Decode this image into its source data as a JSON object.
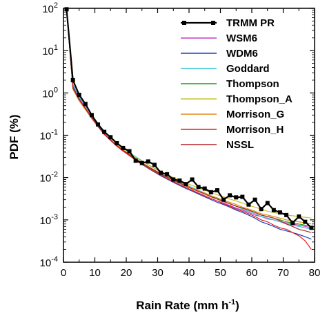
{
  "chart_data": {
    "type": "line",
    "title": "",
    "xlabel": "Rain Rate (mm h",
    "xlabel_sup": "-1",
    "xlabel_close": ")",
    "ylabel": "PDF (%)",
    "xlim": [
      0,
      80
    ],
    "ylim": [
      0.0001,
      100
    ],
    "yscale": "log",
    "grid": false,
    "legend_position": "top-right",
    "x_ticks": [
      "0",
      "10",
      "20",
      "30",
      "40",
      "50",
      "60",
      "70",
      "80"
    ],
    "y_ticks": [
      {
        "base": "10",
        "exp": "2"
      },
      {
        "base": "10",
        "exp": "1"
      },
      {
        "base": "10",
        "exp": "0"
      },
      {
        "base": "10",
        "exp": "-1"
      },
      {
        "base": "10",
        "exp": "-2"
      },
      {
        "base": "10",
        "exp": "-3"
      },
      {
        "base": "10",
        "exp": "-4"
      }
    ],
    "x": [
      1,
      3,
      5,
      7,
      9,
      11,
      13,
      15,
      17,
      19,
      21,
      23,
      25,
      27,
      29,
      31,
      33,
      35,
      37,
      39,
      41,
      43,
      45,
      47,
      49,
      51,
      53,
      55,
      57,
      59,
      61,
      63,
      65,
      67,
      69,
      71,
      73,
      75,
      77,
      79
    ],
    "series": [
      {
        "name": "TRMM PR",
        "color": "#000000",
        "width": 2.2,
        "marker": "square",
        "values": [
          95,
          2.0,
          0.9,
          0.55,
          0.3,
          0.18,
          0.12,
          0.09,
          0.065,
          0.05,
          0.042,
          0.025,
          0.022,
          0.024,
          0.02,
          0.013,
          0.012,
          0.009,
          0.0085,
          0.007,
          0.009,
          0.006,
          0.0055,
          0.0045,
          0.005,
          0.003,
          0.0038,
          0.0034,
          0.0035,
          0.0023,
          0.003,
          0.0018,
          0.0025,
          0.0017,
          0.0015,
          0.0013,
          0.00085,
          0.0012,
          0.0009,
          0.00065
        ]
      },
      {
        "name": "WSM6",
        "color": "#c23fc2",
        "width": 1.2,
        "values": [
          95,
          1.5,
          0.75,
          0.45,
          0.27,
          0.17,
          0.11,
          0.08,
          0.058,
          0.044,
          0.034,
          0.027,
          0.021,
          0.017,
          0.014,
          0.0115,
          0.0095,
          0.008,
          0.0068,
          0.0058,
          0.005,
          0.0043,
          0.0037,
          0.0032,
          0.0028,
          0.0025,
          0.0022,
          0.0019,
          0.0017,
          0.0015,
          0.0013,
          0.0012,
          0.00105,
          0.001,
          0.0009,
          0.00085,
          0.0008,
          0.00075,
          0.0007,
          0.00065
        ]
      },
      {
        "name": "WDM6",
        "color": "#1f3fbf",
        "width": 1.2,
        "values": [
          95,
          1.4,
          0.7,
          0.43,
          0.26,
          0.16,
          0.105,
          0.077,
          0.056,
          0.043,
          0.033,
          0.026,
          0.0205,
          0.0165,
          0.0135,
          0.011,
          0.0092,
          0.0077,
          0.0065,
          0.0055,
          0.0048,
          0.0041,
          0.0035,
          0.003,
          0.0026,
          0.0023,
          0.002,
          0.0017,
          0.0015,
          0.0013,
          0.0011,
          0.0009,
          0.0008,
          0.0007,
          0.0006,
          0.00055,
          0.0005,
          0.00045,
          0.0004,
          0.00035
        ]
      },
      {
        "name": "Goddard",
        "color": "#2ec4d6",
        "width": 1.2,
        "values": [
          95,
          1.6,
          0.8,
          0.5,
          0.3,
          0.19,
          0.125,
          0.09,
          0.066,
          0.05,
          0.039,
          0.031,
          0.025,
          0.02,
          0.0165,
          0.0135,
          0.0112,
          0.0094,
          0.008,
          0.0068,
          0.0058,
          0.005,
          0.0043,
          0.0037,
          0.0032,
          0.0028,
          0.0024,
          0.0021,
          0.0018,
          0.0016,
          0.0014,
          0.0012,
          0.0011,
          0.001,
          0.0009,
          0.0008,
          0.00075,
          0.0007,
          0.00065,
          0.0006
        ]
      },
      {
        "name": "Thompson",
        "color": "#1a9e1a",
        "width": 1.2,
        "values": [
          95,
          1.3,
          0.68,
          0.42,
          0.25,
          0.16,
          0.105,
          0.076,
          0.056,
          0.043,
          0.034,
          0.027,
          0.0215,
          0.0175,
          0.0145,
          0.012,
          0.0101,
          0.0086,
          0.0073,
          0.0063,
          0.0054,
          0.0047,
          0.0041,
          0.0036,
          0.0031,
          0.0027,
          0.0024,
          0.0021,
          0.0019,
          0.0017,
          0.0015,
          0.0013,
          0.0012,
          0.0011,
          0.001,
          0.0009,
          0.00085,
          0.0008,
          0.00075,
          0.0007
        ]
      },
      {
        "name": "Thompson_A",
        "color": "#c9c22a",
        "width": 1.2,
        "values": [
          95,
          1.2,
          0.65,
          0.4,
          0.25,
          0.16,
          0.108,
          0.079,
          0.059,
          0.046,
          0.037,
          0.03,
          0.0245,
          0.0202,
          0.0168,
          0.014,
          0.0118,
          0.01,
          0.0086,
          0.0075,
          0.0065,
          0.0057,
          0.005,
          0.0044,
          0.0039,
          0.0035,
          0.0031,
          0.0028,
          0.0025,
          0.0022,
          0.002,
          0.0018,
          0.0016,
          0.0015,
          0.0014,
          0.0013,
          0.00125,
          0.0012,
          0.00115,
          0.0011
        ]
      },
      {
        "name": "Morrison_G",
        "color": "#e08a10",
        "width": 1.2,
        "values": [
          95,
          1.25,
          0.66,
          0.41,
          0.25,
          0.16,
          0.106,
          0.077,
          0.057,
          0.044,
          0.035,
          0.028,
          0.0225,
          0.0183,
          0.0151,
          0.0125,
          0.0105,
          0.0089,
          0.0076,
          0.0065,
          0.0056,
          0.0049,
          0.0043,
          0.0037,
          0.0033,
          0.0029,
          0.0026,
          0.0023,
          0.002,
          0.0018,
          0.0016,
          0.0014,
          0.0013,
          0.0012,
          0.0011,
          0.001,
          0.00095,
          0.0009,
          0.00085,
          0.0008
        ]
      },
      {
        "name": "Morrison_H",
        "color": "#e0201c",
        "width": 1.2,
        "values": [
          95,
          1.35,
          0.7,
          0.43,
          0.26,
          0.16,
          0.104,
          0.075,
          0.055,
          0.042,
          0.033,
          0.026,
          0.0208,
          0.0168,
          0.0138,
          0.0114,
          0.0095,
          0.008,
          0.0068,
          0.0058,
          0.005,
          0.0043,
          0.0037,
          0.0032,
          0.0028,
          0.0024,
          0.0021,
          0.0018,
          0.0016,
          0.0014,
          0.0012,
          0.001,
          0.0009,
          0.00075,
          0.00065,
          0.0006,
          0.0005,
          0.00042,
          0.00032,
          0.0002
        ]
      },
      {
        "name": "NSSL",
        "color": "#b5232a",
        "width": 1.2,
        "values": [
          95,
          1.3,
          0.69,
          0.43,
          0.26,
          0.165,
          0.108,
          0.078,
          0.057,
          0.044,
          0.035,
          0.028,
          0.0222,
          0.018,
          0.0148,
          0.0123,
          0.0103,
          0.0087,
          0.0074,
          0.0063,
          0.0054,
          0.0047,
          0.0041,
          0.0035,
          0.0031,
          0.0027,
          0.0024,
          0.0021,
          0.0019,
          0.0017,
          0.0015,
          0.0013,
          0.0012,
          0.0011,
          0.00095,
          0.0008,
          0.0007,
          0.0006,
          0.00055,
          0.0005
        ]
      }
    ]
  }
}
